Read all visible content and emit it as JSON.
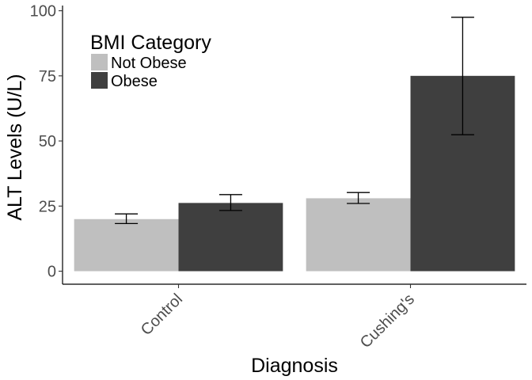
{
  "chart_data": {
    "type": "bar",
    "title": "",
    "xlabel": "Diagnosis",
    "ylabel": "ALT Levels (U/L)",
    "categories": [
      "Control",
      "Cushing's"
    ],
    "ylim": [
      -5,
      102
    ],
    "yticks": [
      "0",
      "25",
      "50",
      "75",
      "100"
    ],
    "grid": false,
    "legend": {
      "title": "BMI Category",
      "placement": "top-left"
    },
    "series": [
      {
        "name": "Not Obese",
        "color": "#bfbfbf",
        "values": [
          20,
          28
        ],
        "error_low": [
          18.3,
          26.0
        ],
        "error_high": [
          22.0,
          30.2
        ]
      },
      {
        "name": "Obese",
        "color": "#3f3f3f",
        "values": [
          26.2,
          75
        ],
        "error_low": [
          23.3,
          52.4
        ],
        "error_high": [
          29.4,
          97.5
        ]
      }
    ]
  }
}
